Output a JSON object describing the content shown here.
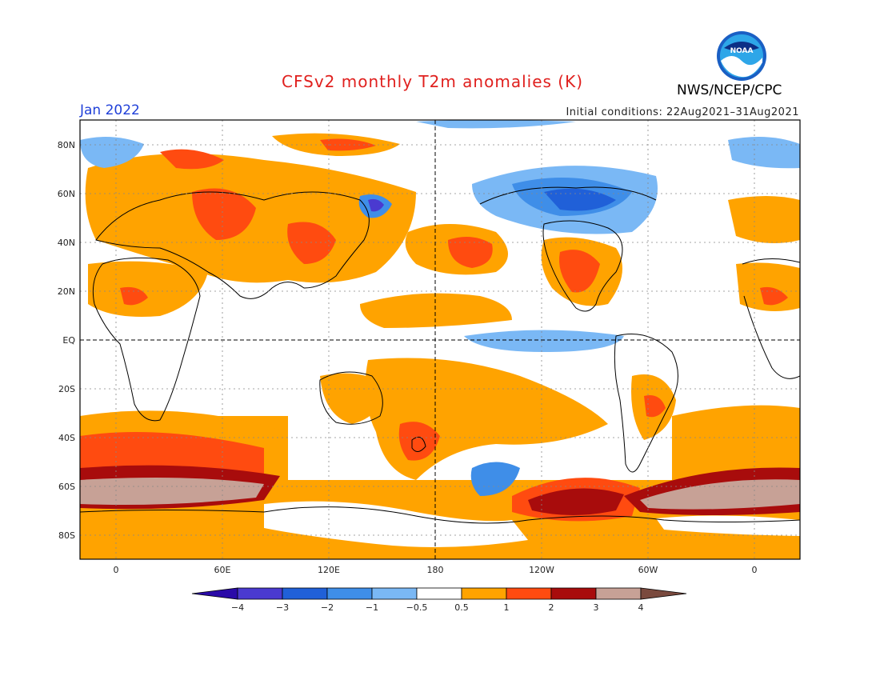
{
  "header": {
    "title": "CFSv2 monthly T2m anomalies (K)",
    "agency": "NWS/NCEP/CPC",
    "logo_text": "NOAA",
    "valid_month": "Jan 2022",
    "initial_conditions": "Initial conditions: 22Aug2021–31Aug2021"
  },
  "axes": {
    "lat_labels": [
      "80N",
      "60N",
      "40N",
      "20N",
      "EQ",
      "20S",
      "40S",
      "60S",
      "80S"
    ],
    "lon_labels": [
      "0",
      "60E",
      "120E",
      "180",
      "120W",
      "60W",
      "0"
    ]
  },
  "legend": {
    "ticks": [
      "−4",
      "−3",
      "−2",
      "−1",
      "−0.5",
      "0.5",
      "1",
      "2",
      "3",
      "4"
    ],
    "colors": [
      "#2a0aa8",
      "#4a3ad0",
      "#2060d8",
      "#3f8ee8",
      "#7ab8f5",
      "#ffffff",
      "#ffa300",
      "#ff4b10",
      "#a80c0c",
      "#c7a196",
      "#7a4a3e"
    ]
  }
}
